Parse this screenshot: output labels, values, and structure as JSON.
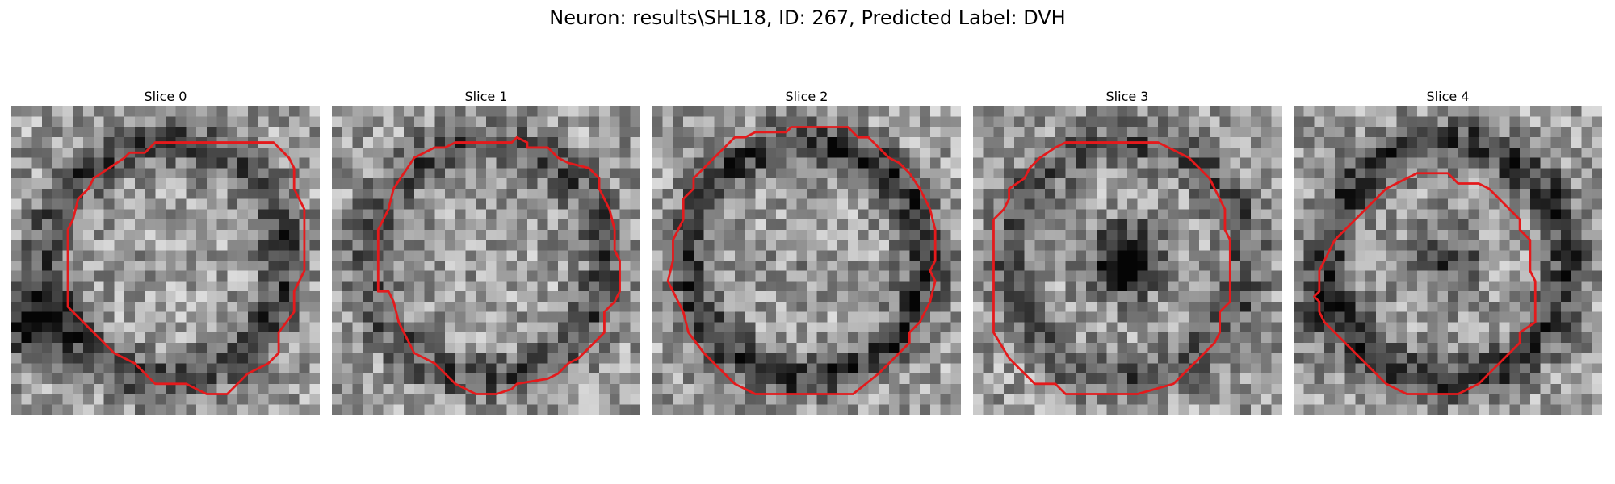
{
  "figure": {
    "title": "Neuron: results\\SHL18, ID: 267, Predicted Label: DVH"
  },
  "panels": [
    {
      "title": "Slice 0",
      "dark_center": 0.0,
      "ring": 0.35,
      "bottom_left_dark": 0.55,
      "seed": 11
    },
    {
      "title": "Slice 1",
      "dark_center": 0.0,
      "ring": 0.3,
      "bottom_left_dark": 0.0,
      "seed": 23
    },
    {
      "title": "Slice 2",
      "dark_center": 0.05,
      "ring": 0.4,
      "bottom_left_dark": 0.0,
      "seed": 37
    },
    {
      "title": "Slice 3",
      "dark_center": 0.75,
      "ring": 0.3,
      "bottom_left_dark": 0.0,
      "seed": 53
    },
    {
      "title": "Slice 4",
      "dark_center": 0.35,
      "ring": 0.4,
      "bottom_left_dark": 0.25,
      "seed": 71
    }
  ],
  "colors": {
    "contour": "#e41a1c",
    "colormap": "gray"
  },
  "image_grid": {
    "rows": 30,
    "cols": 30
  },
  "contours": [
    [
      [
        14,
        3.5
      ],
      [
        25.5,
        3.5
      ],
      [
        26,
        4
      ],
      [
        27,
        5
      ],
      [
        27.5,
        6
      ],
      [
        27.5,
        8
      ],
      [
        28,
        9
      ],
      [
        28.5,
        10
      ],
      [
        28.5,
        16
      ],
      [
        28,
        17
      ],
      [
        27.5,
        18
      ],
      [
        27.5,
        20
      ],
      [
        26,
        22
      ],
      [
        26,
        24
      ],
      [
        25,
        25
      ],
      [
        23,
        26
      ],
      [
        22.5,
        26.5
      ],
      [
        21.5,
        27.5
      ],
      [
        21,
        28
      ],
      [
        19,
        28
      ],
      [
        17,
        27
      ],
      [
        14,
        27
      ],
      [
        13.5,
        26.5
      ],
      [
        12,
        25
      ],
      [
        11,
        24.5
      ],
      [
        10,
        24
      ],
      [
        8.5,
        22.5
      ],
      [
        7,
        21
      ],
      [
        5.5,
        19.5
      ],
      [
        5.5,
        12
      ],
      [
        6,
        11
      ],
      [
        6.5,
        9
      ],
      [
        7.5,
        8
      ],
      [
        8,
        7
      ],
      [
        11,
        5
      ],
      [
        11.5,
        4.5
      ],
      [
        13,
        4.5
      ]
    ],
    [
      [
        15,
        3.5
      ],
      [
        17.5,
        3.5
      ],
      [
        18,
        3
      ],
      [
        19,
        3.5
      ],
      [
        19,
        4
      ],
      [
        21,
        4
      ],
      [
        22,
        5
      ],
      [
        23,
        5.5
      ],
      [
        25,
        6
      ],
      [
        26,
        7
      ],
      [
        26,
        8
      ],
      [
        26.5,
        9
      ],
      [
        27,
        10
      ],
      [
        27.5,
        12
      ],
      [
        27.5,
        14
      ],
      [
        28,
        15
      ],
      [
        28,
        18
      ],
      [
        27.5,
        19
      ],
      [
        26.5,
        20
      ],
      [
        26.5,
        22
      ],
      [
        25.5,
        23
      ],
      [
        24,
        24.5
      ],
      [
        23,
        25
      ],
      [
        22,
        26
      ],
      [
        21,
        26.5
      ],
      [
        18,
        27
      ],
      [
        17.5,
        27.5
      ],
      [
        16,
        28
      ],
      [
        14,
        28
      ],
      [
        13,
        27.5
      ],
      [
        12,
        27
      ],
      [
        11,
        26
      ],
      [
        10,
        25
      ],
      [
        8,
        24
      ],
      [
        7,
        22
      ],
      [
        6.5,
        21
      ],
      [
        6,
        19
      ],
      [
        5.5,
        18
      ],
      [
        4.5,
        18
      ],
      [
        4.5,
        12
      ],
      [
        5.5,
        10
      ],
      [
        6,
        8
      ],
      [
        7,
        6.5
      ],
      [
        8,
        5
      ],
      [
        10,
        4
      ],
      [
        11,
        4
      ],
      [
        12,
        3.5
      ],
      [
        14,
        3.5
      ]
    ],
    [
      [
        13.5,
        2
      ],
      [
        19,
        2
      ],
      [
        20,
        3
      ],
      [
        21,
        3
      ],
      [
        22,
        4
      ],
      [
        23,
        5
      ],
      [
        24,
        5.5
      ],
      [
        25,
        6.5
      ],
      [
        26,
        8
      ],
      [
        26.5,
        9
      ],
      [
        27,
        10
      ],
      [
        27.5,
        12
      ],
      [
        27.5,
        15
      ],
      [
        27,
        16
      ],
      [
        27.5,
        17
      ],
      [
        27,
        19
      ],
      [
        26.5,
        20
      ],
      [
        26,
        21
      ],
      [
        25,
        22
      ],
      [
        25,
        23
      ],
      [
        24,
        24
      ],
      [
        23,
        25
      ],
      [
        22,
        26
      ],
      [
        19.5,
        28
      ],
      [
        10,
        28
      ],
      [
        8,
        27
      ],
      [
        6.5,
        25.5
      ],
      [
        5,
        24
      ],
      [
        3.5,
        22
      ],
      [
        3,
        20
      ],
      [
        2,
        18
      ],
      [
        1.5,
        17
      ],
      [
        2,
        15
      ],
      [
        2,
        13
      ],
      [
        3,
        11
      ],
      [
        3,
        9
      ],
      [
        4,
        8
      ],
      [
        4,
        7
      ],
      [
        5.5,
        5.5
      ],
      [
        6,
        5
      ],
      [
        7,
        4
      ],
      [
        8,
        3
      ],
      [
        9,
        3
      ],
      [
        10,
        2.5
      ],
      [
        13,
        2.5
      ]
    ],
    [
      [
        9,
        3.5
      ],
      [
        18,
        3.5
      ],
      [
        19,
        4
      ],
      [
        20,
        4.5
      ],
      [
        21,
        5
      ],
      [
        22,
        6
      ],
      [
        23,
        7
      ],
      [
        23.5,
        8
      ],
      [
        24,
        9
      ],
      [
        24.5,
        10
      ],
      [
        24.5,
        12
      ],
      [
        25,
        13
      ],
      [
        25,
        19
      ],
      [
        24,
        20
      ],
      [
        24,
        22
      ],
      [
        23.5,
        23
      ],
      [
        22.5,
        24
      ],
      [
        21,
        25.5
      ],
      [
        19.5,
        27
      ],
      [
        16,
        28
      ],
      [
        9,
        28
      ],
      [
        8,
        27
      ],
      [
        6,
        27
      ],
      [
        5,
        26
      ],
      [
        4.5,
        25.5
      ],
      [
        3.5,
        24.5
      ],
      [
        2,
        22
      ],
      [
        2,
        11
      ],
      [
        2.5,
        10.5
      ],
      [
        3,
        10
      ],
      [
        3.5,
        9
      ],
      [
        3.5,
        8
      ],
      [
        5,
        7
      ],
      [
        5.5,
        6
      ],
      [
        6.5,
        5
      ],
      [
        8,
        4
      ]
    ],
    [
      [
        12,
        6.5
      ],
      [
        15,
        6.5
      ],
      [
        16,
        7.5
      ],
      [
        18,
        7.5
      ],
      [
        19,
        8
      ],
      [
        21,
        10
      ],
      [
        22,
        11
      ],
      [
        22,
        12
      ],
      [
        23,
        13
      ],
      [
        23,
        16
      ],
      [
        23.5,
        17
      ],
      [
        23.5,
        21
      ],
      [
        22,
        22
      ],
      [
        22,
        23
      ],
      [
        21,
        24
      ],
      [
        19,
        26
      ],
      [
        18,
        27
      ],
      [
        16,
        28
      ],
      [
        11,
        28
      ],
      [
        10,
        27.5
      ],
      [
        9,
        27
      ],
      [
        7,
        25
      ],
      [
        6,
        24
      ],
      [
        5,
        23
      ],
      [
        3,
        21
      ],
      [
        2.5,
        20
      ],
      [
        2.5,
        19
      ],
      [
        2,
        18.5
      ],
      [
        2.5,
        18
      ],
      [
        2.5,
        16
      ],
      [
        3,
        15
      ],
      [
        3.5,
        14
      ],
      [
        4,
        13
      ],
      [
        5,
        12
      ],
      [
        6,
        11
      ],
      [
        7,
        10
      ],
      [
        8,
        9
      ],
      [
        9,
        8
      ],
      [
        10,
        7.5
      ],
      [
        11,
        7
      ]
    ]
  ]
}
